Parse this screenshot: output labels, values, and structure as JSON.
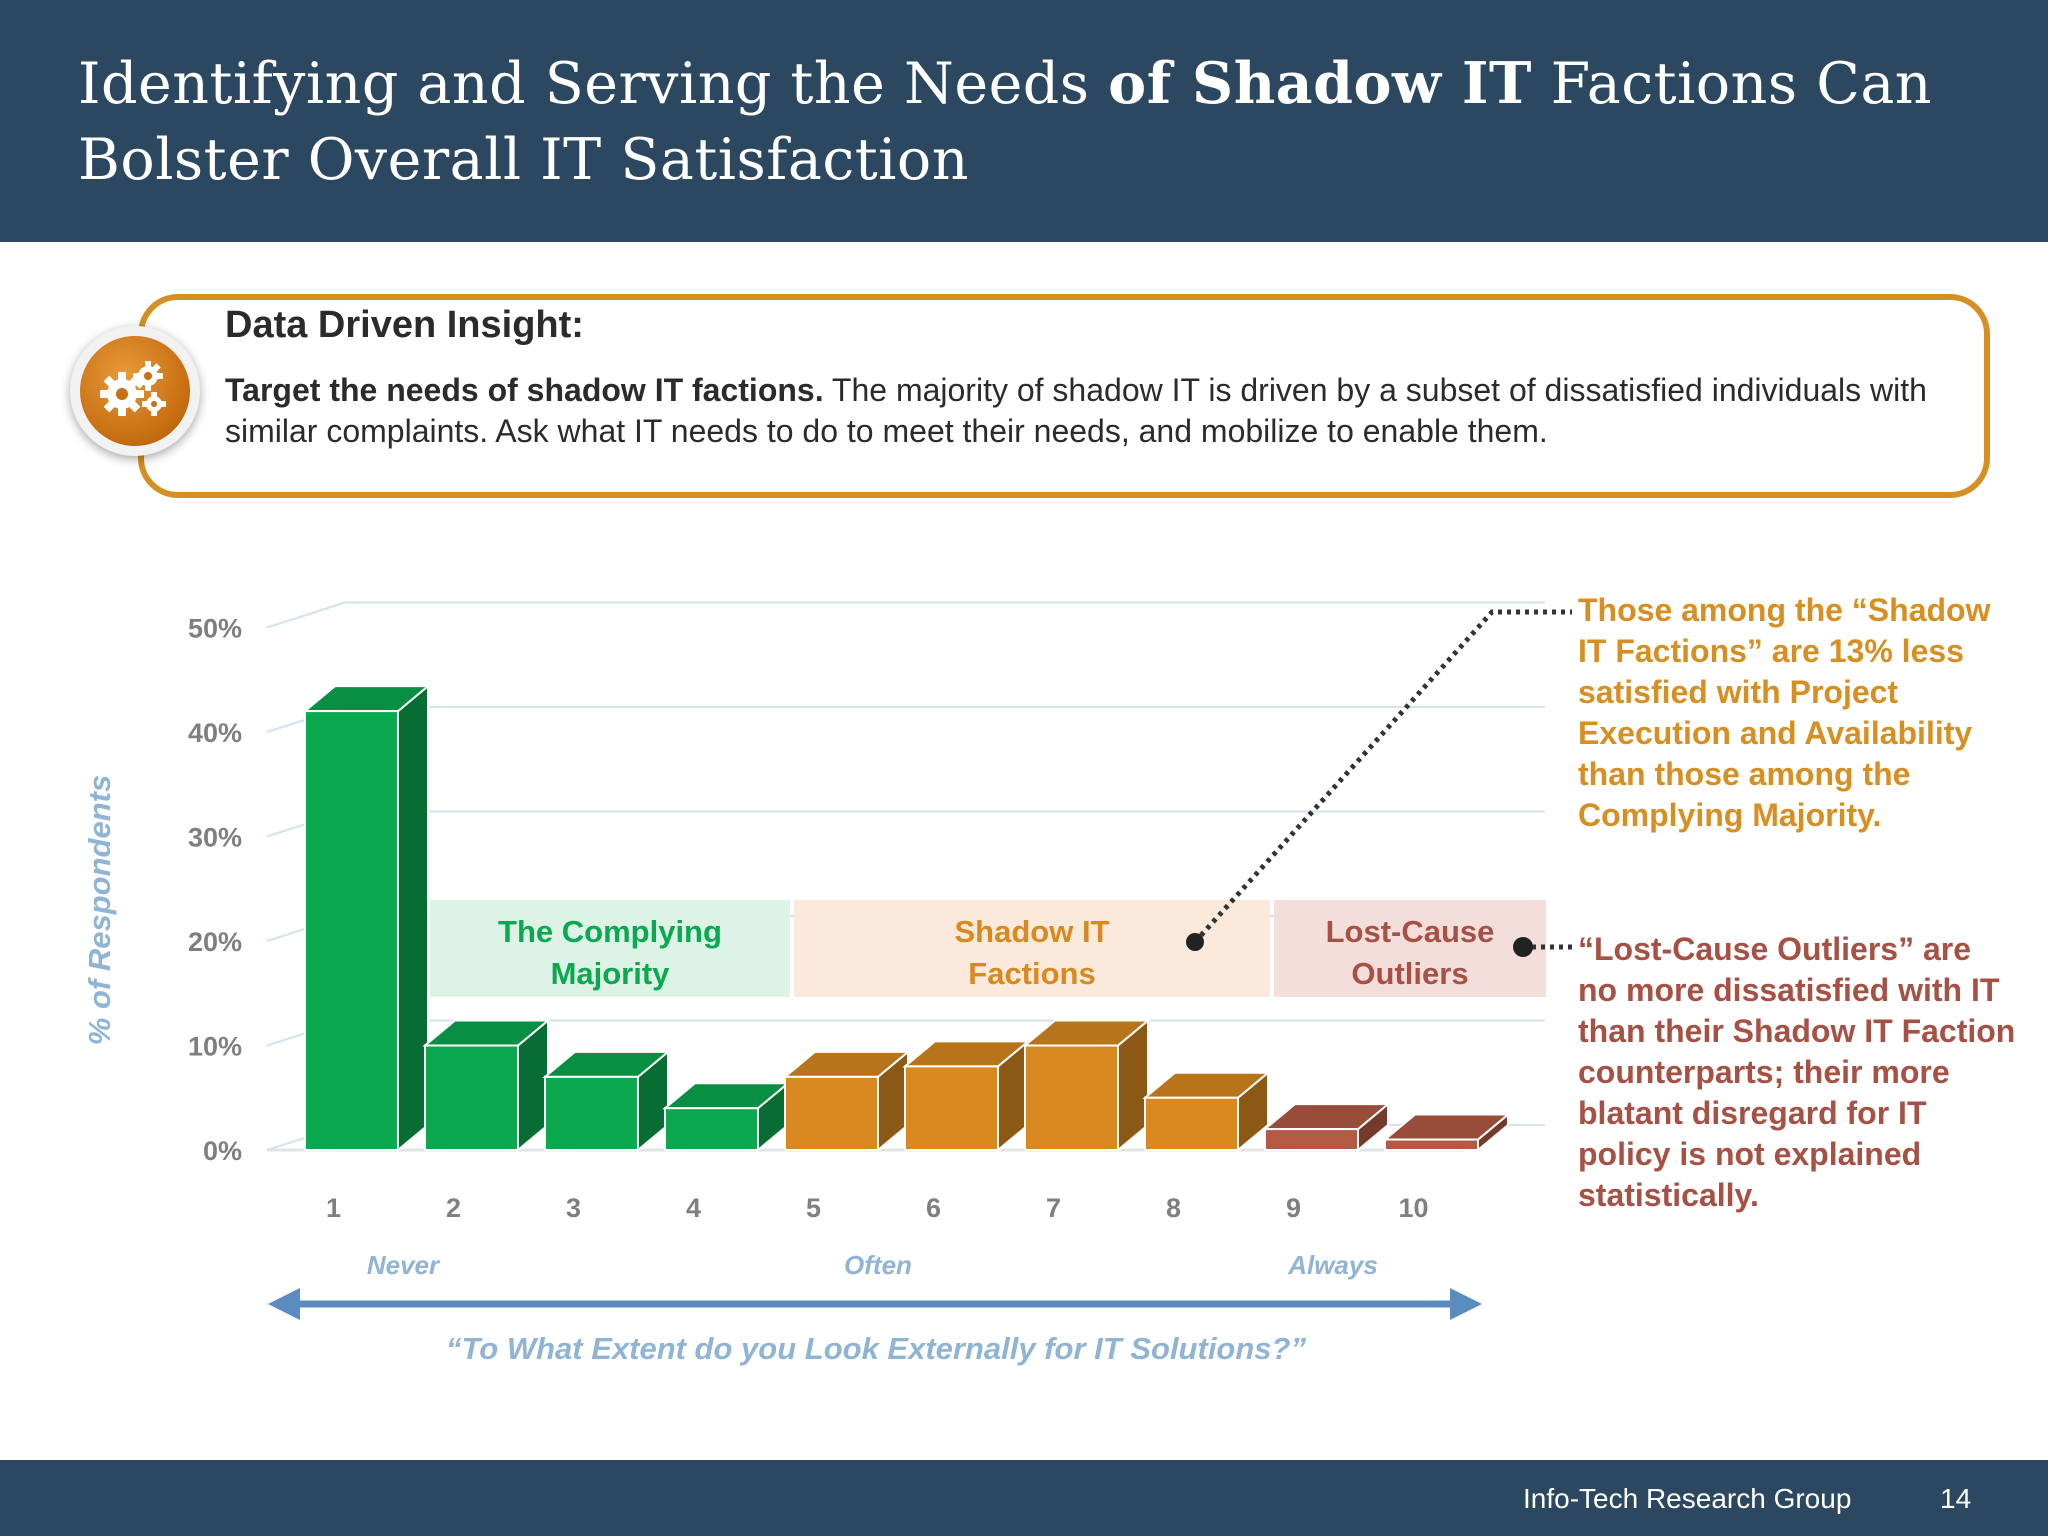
{
  "slide": {
    "title_part1": "Identifying and Serving the Needs ",
    "title_bold": "of Shadow IT",
    "title_part2": " Factions Can Bolster Overall IT Satisfaction"
  },
  "insight": {
    "heading": "Data Driven Insight:",
    "lead_bold": "Target the needs of shadow IT factions.",
    "body": " The majority of shadow IT is driven by a subset of dissatisfied individuals with similar complaints. Ask what IT needs to do to meet their needs, and mobilize to enable them.",
    "icon": "gears-icon"
  },
  "chart_data": {
    "type": "bar",
    "categories": [
      "1",
      "2",
      "3",
      "4",
      "5",
      "6",
      "7",
      "8",
      "9",
      "10"
    ],
    "values": [
      42,
      10,
      7,
      4,
      7,
      8,
      10,
      5,
      2,
      1
    ],
    "ylabel": "% of Respondents",
    "xlabel": "“To What Extent do you Look Externally for IT Solutions?”",
    "yticks": [
      "0%",
      "10%",
      "20%",
      "30%",
      "40%",
      "50%"
    ],
    "ylim": [
      0,
      50
    ],
    "scale_labels": [
      "Never",
      "Often",
      "Always"
    ],
    "groups": [
      {
        "name": "The Complying Majority",
        "categories": [
          "1",
          "2",
          "3",
          "4"
        ],
        "color": "#0aa84f"
      },
      {
        "name": "Shadow IT Factions",
        "categories": [
          "5",
          "6",
          "7",
          "8"
        ],
        "color": "#d8891f"
      },
      {
        "name": "Lost-Cause Outliers",
        "categories": [
          "9",
          "10"
        ],
        "color": "#b35a45"
      }
    ],
    "grid": true
  },
  "notes": {
    "shadow_note": "Those among the “Shadow IT Factions” are 13% less satisfied with Project Execution and Availability than those among the Complying Majority.",
    "outlier_note": "“Lost-Cause Outliers” are no more dissatisfied with IT than their Shadow IT Faction counterparts; their more blatant disregard for IT policy is not explained statistically."
  },
  "footer": {
    "org": "Info-Tech Research Group",
    "page": "14"
  },
  "colors": {
    "header": "#2c4860",
    "accent": "#d58f25",
    "green": "#0aa84f",
    "orange": "#d8891f",
    "red": "#b35a45",
    "axis_text": "#7f7f7f",
    "axis_label": "#8fb4d4"
  }
}
